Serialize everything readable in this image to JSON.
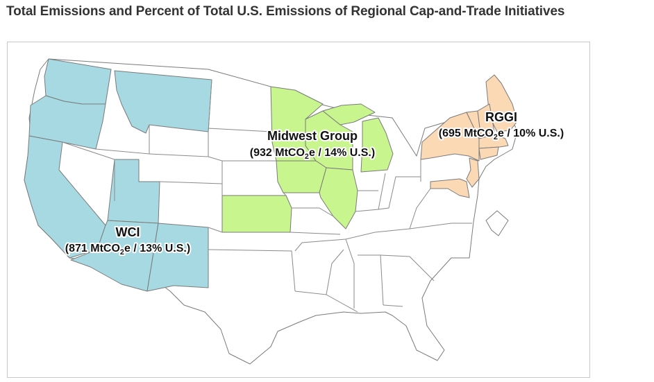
{
  "page": {
    "title": "Total Emissions and Percent of Total U.S. Emissions of Regional Cap-and-Trade Initiatives"
  },
  "colors": {
    "wci": "#a6d9e2",
    "midwest": "#c8f58e",
    "rggi": "#fbd9b4",
    "other": "#ffffff",
    "border": "#7a7a7a"
  },
  "regions": [
    {
      "id": "wci",
      "name": "WCI",
      "mtco2e": 871,
      "percent_us": 13,
      "value_prefix": "(871 MtCO",
      "value_subscript": "2",
      "value_suffix": "e / 13% U.S.)"
    },
    {
      "id": "midwest",
      "name": "Midwest Group",
      "mtco2e": 932,
      "percent_us": 14,
      "value_prefix": "(932 MtCO",
      "value_subscript": "2",
      "value_suffix": "e / 14% U.S.)"
    },
    {
      "id": "rggi",
      "name": "RGGI",
      "mtco2e": 695,
      "percent_us": 10,
      "value_prefix": "(695 MtCO",
      "value_subscript": "2",
      "value_suffix": "e / 10% U.S.)"
    }
  ]
}
